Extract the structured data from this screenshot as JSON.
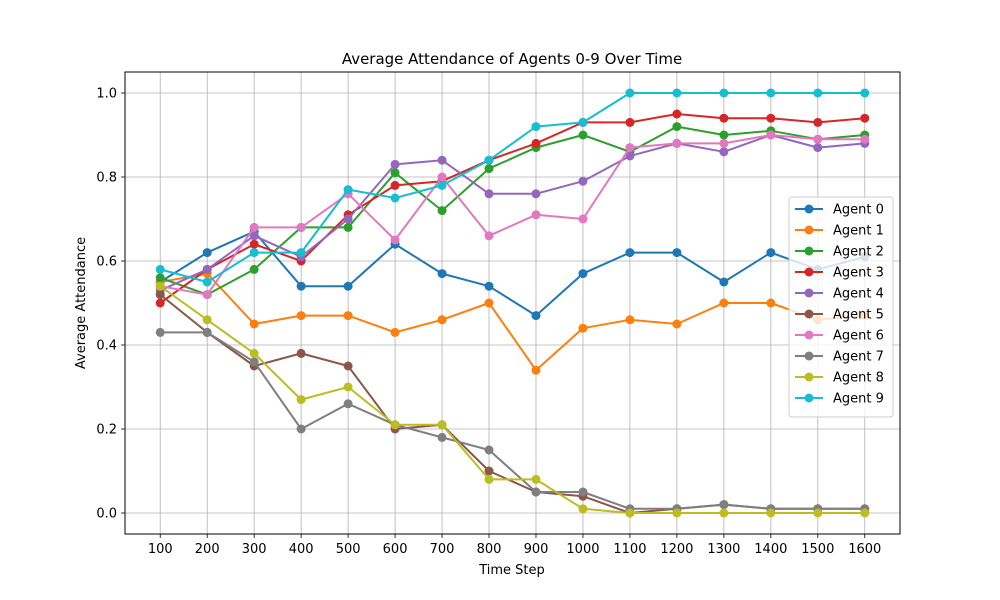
{
  "chart_data": {
    "type": "line",
    "title": "Average Attendance of Agents 0-9 Over Time",
    "xlabel": "Time Step",
    "ylabel": "Average Attendance",
    "x": [
      100,
      200,
      300,
      400,
      500,
      600,
      700,
      800,
      900,
      1000,
      1100,
      1200,
      1300,
      1400,
      1500,
      1600
    ],
    "xticks": [
      "100",
      "200",
      "300",
      "400",
      "500",
      "600",
      "700",
      "800",
      "900",
      "1000",
      "1100",
      "1200",
      "1300",
      "1400",
      "1500",
      "1600"
    ],
    "yticks": [
      "0.0",
      "0.2",
      "0.4",
      "0.6",
      "0.8",
      "1.0"
    ],
    "xlim": [
      25,
      1675
    ],
    "ylim": [
      -0.05,
      1.05
    ],
    "grid": true,
    "legend_position": "center-right",
    "series": [
      {
        "name": "Agent 0",
        "color": "#1f77b4",
        "values": [
          0.55,
          0.62,
          0.67,
          0.54,
          0.54,
          0.64,
          0.57,
          0.54,
          0.47,
          0.57,
          0.62,
          0.62,
          0.55,
          0.62,
          0.58,
          0.61
        ]
      },
      {
        "name": "Agent 1",
        "color": "#ff7f0e",
        "values": [
          0.55,
          0.57,
          0.45,
          0.47,
          0.47,
          0.43,
          0.46,
          0.5,
          0.34,
          0.44,
          0.46,
          0.45,
          0.5,
          0.5,
          0.46,
          0.47
        ]
      },
      {
        "name": "Agent 2",
        "color": "#2ca02c",
        "values": [
          0.56,
          0.52,
          0.58,
          0.68,
          0.68,
          0.81,
          0.72,
          0.82,
          0.87,
          0.9,
          0.86,
          0.92,
          0.9,
          0.91,
          0.89,
          0.9
        ]
      },
      {
        "name": "Agent 3",
        "color": "#d62728",
        "values": [
          0.5,
          0.58,
          0.64,
          0.6,
          0.71,
          0.78,
          0.79,
          0.84,
          0.88,
          0.93,
          0.93,
          0.95,
          0.94,
          0.94,
          0.93,
          0.94
        ]
      },
      {
        "name": "Agent 4",
        "color": "#9467bd",
        "values": [
          0.53,
          0.58,
          0.66,
          0.61,
          0.7,
          0.83,
          0.84,
          0.76,
          0.76,
          0.79,
          0.85,
          0.88,
          0.86,
          0.9,
          0.87,
          0.88
        ]
      },
      {
        "name": "Agent 5",
        "color": "#8c564b",
        "values": [
          0.52,
          0.43,
          0.35,
          0.38,
          0.35,
          0.2,
          0.21,
          0.1,
          0.05,
          0.04,
          0.0,
          0.01,
          0.02,
          0.01,
          0.01,
          0.01
        ]
      },
      {
        "name": "Agent 6",
        "color": "#e377c2",
        "values": [
          0.54,
          0.52,
          0.68,
          0.68,
          0.76,
          0.65,
          0.8,
          0.66,
          0.71,
          0.7,
          0.87,
          0.88,
          0.88,
          0.9,
          0.89,
          0.89
        ]
      },
      {
        "name": "Agent 7",
        "color": "#7f7f7f",
        "values": [
          0.43,
          0.43,
          0.36,
          0.2,
          0.26,
          0.21,
          0.18,
          0.15,
          0.05,
          0.05,
          0.01,
          0.01,
          0.02,
          0.01,
          0.01,
          0.01
        ]
      },
      {
        "name": "Agent 8",
        "color": "#bcbd22",
        "values": [
          0.54,
          0.46,
          0.38,
          0.27,
          0.3,
          0.21,
          0.21,
          0.08,
          0.08,
          0.01,
          0.0,
          0.0,
          0.0,
          0.0,
          0.0,
          0.0
        ]
      },
      {
        "name": "Agent 9",
        "color": "#17becf",
        "values": [
          0.58,
          0.55,
          0.62,
          0.62,
          0.77,
          0.75,
          0.78,
          0.84,
          0.92,
          0.93,
          1.0,
          1.0,
          1.0,
          1.0,
          1.0,
          1.0
        ]
      }
    ]
  }
}
